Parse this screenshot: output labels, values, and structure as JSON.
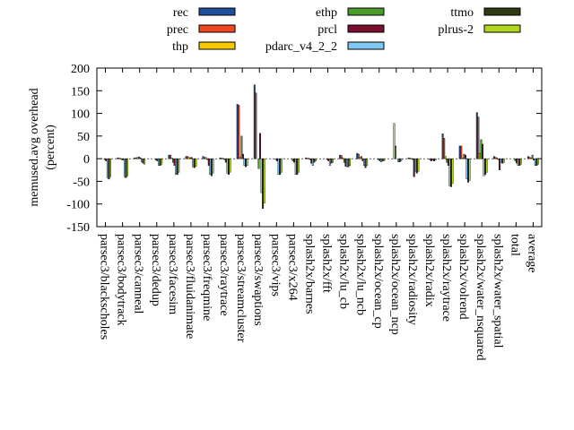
{
  "chart_data": {
    "type": "bar",
    "ylabel": "memused.avg overhead (percent)",
    "ylabel_lines": [
      "memused.avg overhead",
      "(percent)"
    ],
    "ylim": [
      -150,
      200
    ],
    "yticks": [
      -150,
      -100,
      -50,
      0,
      50,
      100,
      150,
      200
    ],
    "grid": false,
    "legend_position": "top, outside plot, 3 columns",
    "categories": [
      "parsec3/blackscholes",
      "parsec3/bodytrack",
      "parsec3/canneal",
      "parsec3/dedup",
      "parsec3/facesim",
      "parsec3/fluidanimate",
      "parsec3/freqmine",
      "parsec3/raytrace",
      "parsec3/streamcluster",
      "parsec3/swaptions",
      "parsec3/vips",
      "parsec3/x264",
      "splash2x/barnes",
      "splash2x/fft",
      "splash2x/lu_cb",
      "splash2x/lu_ncb",
      "splash2x/ocean_cp",
      "splash2x/ocean_ncp",
      "splash2x/radiosity",
      "splash2x/radix",
      "splash2x/raytrace",
      "splash2x/volrend",
      "splash2x/water_nsquared",
      "splash2x/water_spatial",
      "total",
      "average"
    ],
    "series": [
      {
        "name": "rec",
        "color": "#1f4e9c",
        "values": [
          0,
          2,
          2,
          0,
          8,
          5,
          5,
          2,
          120,
          163,
          0,
          0,
          2,
          0,
          8,
          12,
          0,
          0,
          2,
          0,
          55,
          28,
          102,
          5,
          0,
          5
        ]
      },
      {
        "name": "prec",
        "color": "#f0461e",
        "values": [
          0,
          1,
          2,
          0,
          8,
          5,
          3,
          1,
          118,
          145,
          0,
          0,
          1,
          0,
          7,
          10,
          0,
          0,
          1,
          0,
          45,
          28,
          92,
          3,
          0,
          3
        ]
      },
      {
        "name": "thp",
        "color": "#f6c800",
        "values": [
          0,
          1,
          3,
          0,
          2,
          3,
          3,
          1,
          3,
          0,
          0,
          0,
          1,
          0,
          2,
          4,
          0,
          78,
          1,
          0,
          5,
          2,
          12,
          2,
          0,
          2
        ]
      },
      {
        "name": "ethp",
        "color": "#4c9a27",
        "values": [
          -2,
          -2,
          4,
          -3,
          -8,
          2,
          -2,
          -2,
          50,
          -22,
          -2,
          -5,
          -2,
          -2,
          -8,
          5,
          -2,
          28,
          -2,
          -2,
          -8,
          10,
          42,
          -2,
          -5,
          8
        ]
      },
      {
        "name": "prcl",
        "color": "#7a0f2e",
        "values": [
          -5,
          -3,
          2,
          -5,
          -15,
          3,
          -15,
          -8,
          10,
          56,
          -5,
          -8,
          -10,
          -5,
          -17,
          -5,
          -5,
          0,
          -40,
          -5,
          -15,
          8,
          32,
          -25,
          -10,
          -3
        ]
      },
      {
        "name": "pdarc_v4_2_2",
        "color": "#7fc6f2",
        "values": [
          -42,
          -40,
          -7,
          -15,
          -35,
          -18,
          -35,
          -32,
          -15,
          -75,
          -35,
          -35,
          -15,
          -15,
          -18,
          -15,
          -7,
          -7,
          -28,
          -3,
          -60,
          -45,
          -38,
          -8,
          -15,
          -15
        ]
      },
      {
        "name": "ttmo",
        "color": "#2e3b11",
        "values": [
          -45,
          -42,
          -10,
          -15,
          -35,
          -20,
          -38,
          -35,
          -18,
          -110,
          -35,
          -35,
          -8,
          -10,
          -18,
          -20,
          -5,
          -7,
          -32,
          -5,
          -62,
          -52,
          -35,
          -10,
          -15,
          -15
        ]
      },
      {
        "name": "plrus-2",
        "color": "#b0d521",
        "values": [
          -40,
          -38,
          -12,
          -12,
          -30,
          -17,
          -32,
          -30,
          -15,
          -98,
          -30,
          -30,
          -5,
          -8,
          -15,
          -15,
          -5,
          -5,
          -28,
          -3,
          -55,
          -48,
          -30,
          -8,
          -12,
          -12
        ]
      }
    ]
  }
}
